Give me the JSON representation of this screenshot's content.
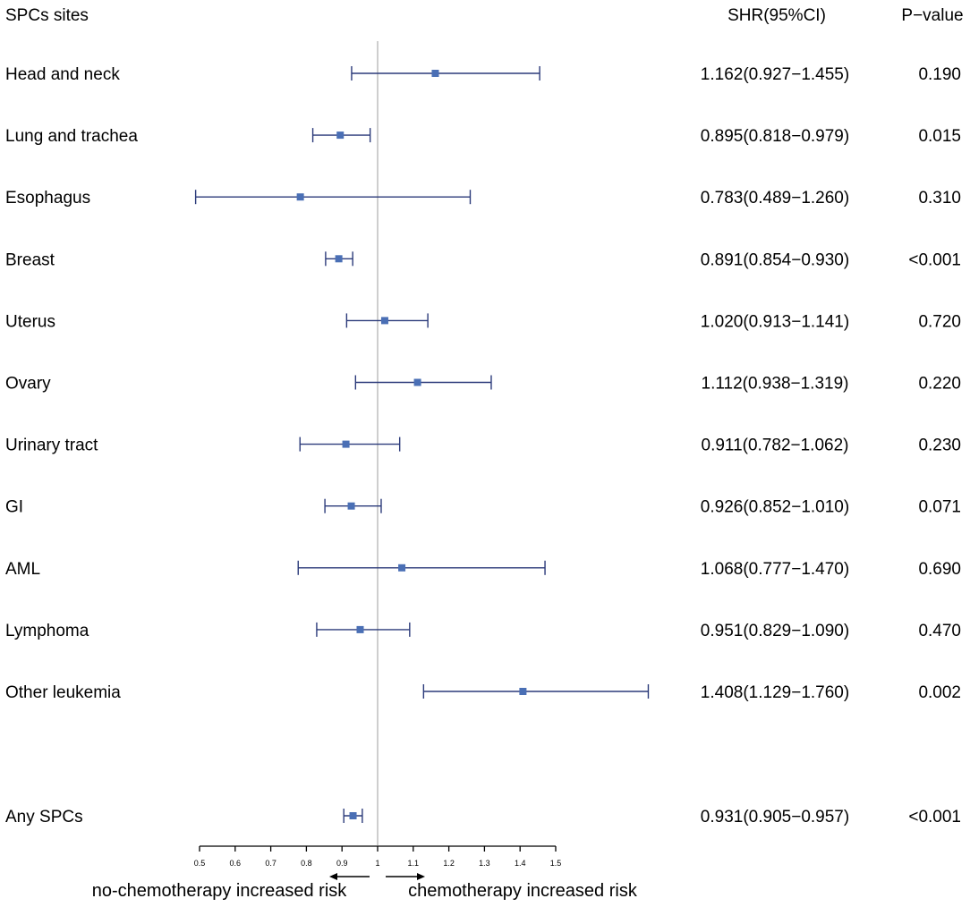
{
  "chart_data": {
    "type": "forest",
    "headers": {
      "site": "SPCs sites",
      "shr": "SHR(95%CI)",
      "p": "P−value"
    },
    "reference_line": 1,
    "x_range": [
      0.5,
      1.5
    ],
    "ticks": [
      0.5,
      0.6,
      0.7,
      0.8,
      0.9,
      1,
      1.1,
      1.2,
      1.3,
      1.4,
      1.5
    ],
    "tick_labels": [
      "0.5",
      "0.6",
      "0.7",
      "0.8",
      "0.9",
      "1",
      "1.1",
      "1.2",
      "1.3",
      "1.4",
      "1.5"
    ],
    "rows": [
      {
        "site": "Head and neck",
        "est": 1.162,
        "lo": 0.927,
        "hi": 1.455,
        "shr_text": "1.162(0.927−1.455)",
        "p": "0.190"
      },
      {
        "site": "Lung and trachea",
        "est": 0.895,
        "lo": 0.818,
        "hi": 0.979,
        "shr_text": "0.895(0.818−0.979)",
        "p": "0.015"
      },
      {
        "site": "Esophagus",
        "est": 0.783,
        "lo": 0.489,
        "hi": 1.26,
        "shr_text": "0.783(0.489−1.260)",
        "p": "0.310"
      },
      {
        "site": "Breast",
        "est": 0.891,
        "lo": 0.854,
        "hi": 0.93,
        "shr_text": "0.891(0.854−0.930)",
        "p": "<0.001"
      },
      {
        "site": "Uterus",
        "est": 1.02,
        "lo": 0.913,
        "hi": 1.141,
        "shr_text": "1.020(0.913−1.141)",
        "p": "0.720"
      },
      {
        "site": "Ovary",
        "est": 1.112,
        "lo": 0.938,
        "hi": 1.319,
        "shr_text": "1.112(0.938−1.319)",
        "p": "0.220"
      },
      {
        "site": "Urinary tract",
        "est": 0.911,
        "lo": 0.782,
        "hi": 1.062,
        "shr_text": "0.911(0.782−1.062)",
        "p": "0.230"
      },
      {
        "site": "GI",
        "est": 0.926,
        "lo": 0.852,
        "hi": 1.01,
        "shr_text": "0.926(0.852−1.010)",
        "p": "0.071"
      },
      {
        "site": "AML",
        "est": 1.068,
        "lo": 0.777,
        "hi": 1.47,
        "shr_text": "1.068(0.777−1.470)",
        "p": "0.690"
      },
      {
        "site": "Lymphoma",
        "est": 0.951,
        "lo": 0.829,
        "hi": 1.09,
        "shr_text": "0.951(0.829−1.090)",
        "p": "0.470"
      },
      {
        "site": "Other leukemia",
        "est": 1.408,
        "lo": 1.129,
        "hi": 1.76,
        "shr_text": "1.408(1.129−1.760)",
        "p": "0.002"
      },
      {
        "site": "Any SPCs",
        "est": 0.931,
        "lo": 0.905,
        "hi": 0.957,
        "shr_text": "0.931(0.905−0.957)",
        "p": "<0.001"
      }
    ],
    "direction_labels": {
      "left": "no-chemotherapy increased risk",
      "right": "chemotherapy increased risk"
    },
    "colors": {
      "marker": "#4a6fb5",
      "ci_line": "#2b3a7a",
      "reference": "#bdbdbd",
      "axis": "#000000"
    }
  }
}
